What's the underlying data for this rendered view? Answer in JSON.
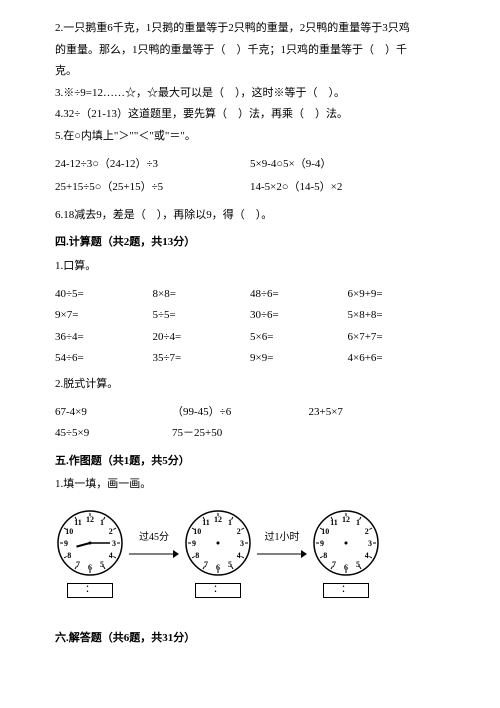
{
  "q2": {
    "line1": "2.一只鹅重6千克，1只鹅的重量等于2只鸭的重量，2只鸭的重量等于3只鸡",
    "line2": "的重量。那么，1只鸭的重量等于（　）千克；1只鸡的重量等于（　）千",
    "line3": "克。"
  },
  "q3": "3.※÷9=12……☆，☆最大可以是（　），这时※等于（　）。",
  "q4": "4.32÷（21-13）这道题里，要先算（　）法，再乘（　）法。",
  "q5": "5.在○内填上\"＞\"\"＜\"或\"＝\"。",
  "compare": {
    "r1a": "24-12÷3○（24-12）÷3",
    "r1b": "5×9-4○5×（9-4）",
    "r2a": "25+15÷5○（25+15）÷5",
    "r2b": "14-5×2○（14-5）×2"
  },
  "q6": "6.18减去9，差是（　），再除以9，得（　）。",
  "section4": "四.计算题（共2题，共13分）",
  "s4q1": "1.口算。",
  "calc1": {
    "r1": [
      "40÷5=",
      "8×8=",
      "48÷6=",
      "6×9+9="
    ],
    "r2": [
      "9×7=",
      "5÷5=",
      "30÷6=",
      "5×8+8="
    ],
    "r3": [
      "36÷4=",
      "20÷4=",
      "5×6=",
      "6×7+7="
    ],
    "r4": [
      "54÷6=",
      "35÷7=",
      "9×9=",
      "4×6+6="
    ]
  },
  "s4q2": "2.脱式计算。",
  "calc2": {
    "r1": [
      "67-4×9",
      "（99-45）÷6",
      "23+5×7"
    ],
    "r2": [
      "45÷5×9",
      "75－25+50",
      ""
    ]
  },
  "section5": "五.作图题（共1题，共5分）",
  "s5q1": "1.填一填，画一画。",
  "clocks": {
    "label1": "过45分",
    "label2": "过1小时",
    "colon": "："
  },
  "section6": "六.解答题（共6题，共31分）",
  "clockNumbers": [
    "12",
    "1",
    "2",
    "3",
    "4",
    "5",
    "6",
    "7",
    "8",
    "9",
    "10",
    "11"
  ],
  "clock1Hands": {
    "hourAngle": -105,
    "minuteAngle": 90
  },
  "clockStyle": {
    "radius": 32,
    "numRadius": 24,
    "tickOuter": 30,
    "tickInner": 27
  }
}
